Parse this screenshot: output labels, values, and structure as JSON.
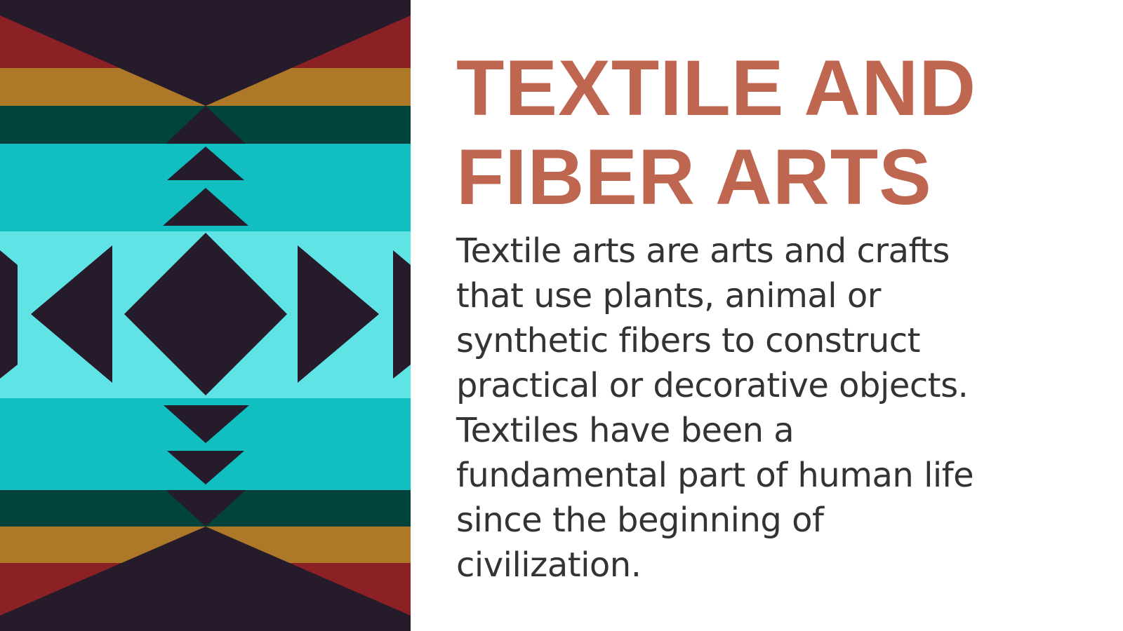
{
  "slide": {
    "title_line1": "TEXTILE AND",
    "title_line2": "FIBER ARTS",
    "body": "Textile arts are arts and crafts that use plants, animal or synthetic fibers to construct practical or decorative objects. Textiles have been a fundamental part of human life since the beginning of civilization."
  },
  "pattern": {
    "colors": {
      "dark": "#251b2b",
      "red": "#8b2124",
      "gold": "#ae7829",
      "dark_green": "#01443b",
      "teal": "#12bfc0",
      "light_teal": "#5fe3e4"
    }
  },
  "theme": {
    "title_color": "#bf6650",
    "body_color": "#333333",
    "background": "#ffffff"
  }
}
